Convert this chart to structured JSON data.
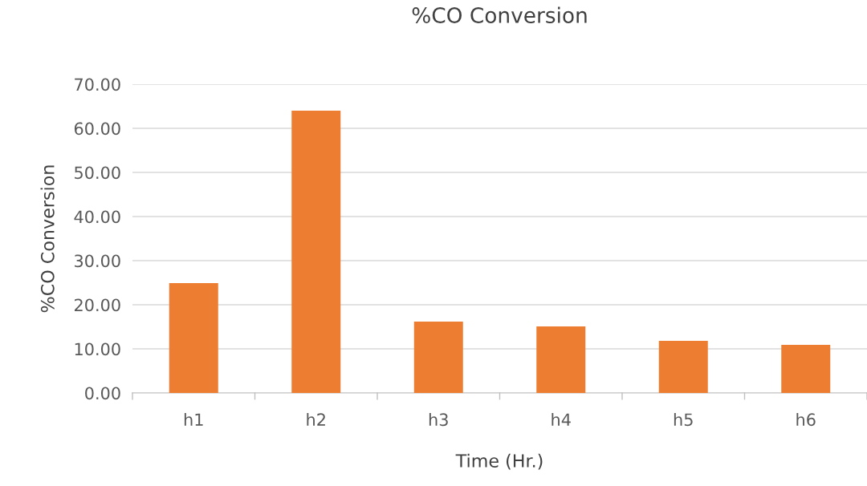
{
  "chart_data": {
    "type": "bar",
    "title": "%CO Conversion",
    "xlabel": "Time (Hr.)",
    "ylabel": "%CO Conversion",
    "categories": [
      "h1",
      "h2",
      "h3",
      "h4",
      "h5",
      "h6"
    ],
    "values": [
      24.9,
      64.0,
      16.2,
      15.1,
      11.8,
      10.9
    ],
    "color": "#ed7d31",
    "ylim": [
      0,
      70
    ],
    "yticks": [
      {
        "value": 0,
        "label": "0.00"
      },
      {
        "value": 10,
        "label": "10.00"
      },
      {
        "value": 20,
        "label": "20.00"
      },
      {
        "value": 30,
        "label": "30.00"
      },
      {
        "value": 40,
        "label": "40.00"
      },
      {
        "value": 50,
        "label": "50.00"
      },
      {
        "value": 60,
        "label": "60.00"
      },
      {
        "value": 70,
        "label": "70.00"
      }
    ],
    "grid": "y",
    "legend": false
  }
}
